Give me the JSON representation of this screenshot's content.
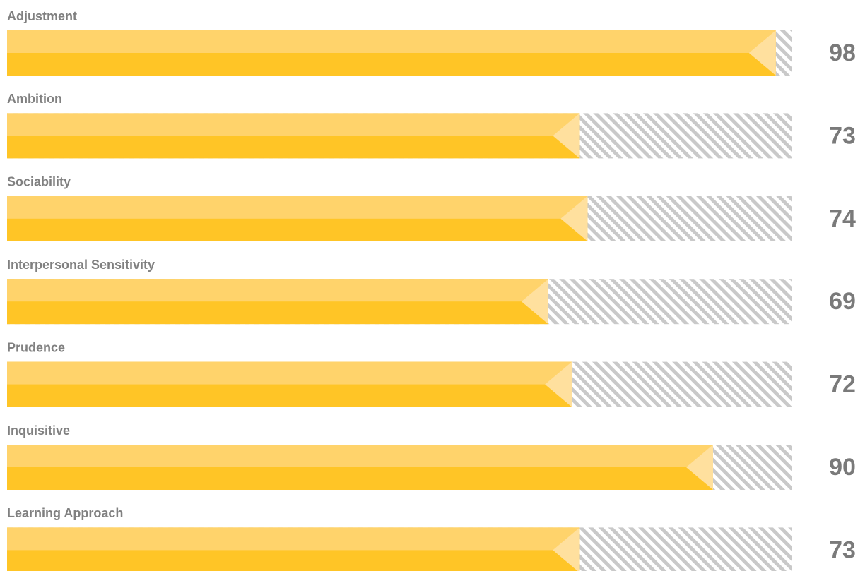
{
  "chart_data": {
    "type": "bar",
    "orientation": "horizontal",
    "categories": [
      "Adjustment",
      "Ambition",
      "Sociability",
      "Interpersonal Sensitivity",
      "Prudence",
      "Inquisitive",
      "Learning Approach"
    ],
    "values": [
      98,
      73,
      74,
      69,
      72,
      90,
      73
    ],
    "color": "#ffc526",
    "xlim": [
      0,
      100
    ]
  }
}
